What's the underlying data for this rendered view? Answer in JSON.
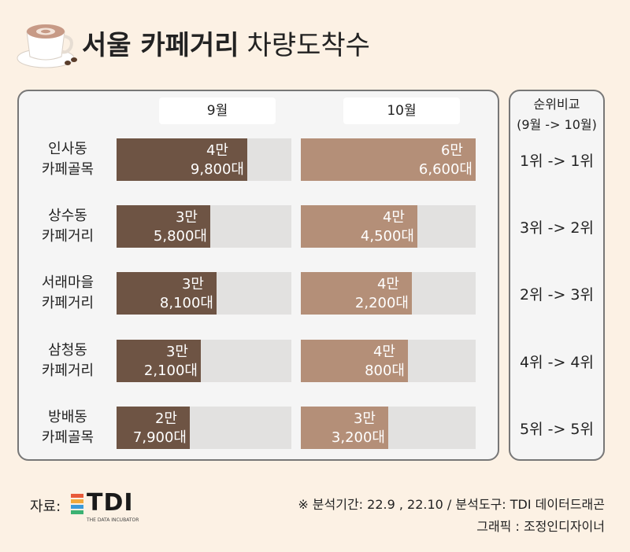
{
  "title_bold": "서울 카페거리",
  "title_light": "차량도착수",
  "columns": {
    "sep": "9월",
    "oct": "10월"
  },
  "rank_header": {
    "line1": "순위비교",
    "line2": "(9월 -> 10월)"
  },
  "chart_data": {
    "type": "bar",
    "title": "서울 카페거리 차량도착수",
    "categories": [
      "인사동 카페골목",
      "상수동 카페거리",
      "서래마을 카페거리",
      "삼청동 카페거리",
      "방배동 카페골목"
    ],
    "series": [
      {
        "name": "9월",
        "values": [
          49800,
          35800,
          38100,
          32100,
          27900
        ]
      },
      {
        "name": "10월",
        "values": [
          66600,
          44500,
          42200,
          40800,
          33200
        ]
      }
    ]
  },
  "rows": [
    {
      "label1": "인사동",
      "label2": "카페골목",
      "sep_l1": "4만",
      "sep_l2": "9,800대",
      "oct_l1": "6만",
      "oct_l2": "6,600대",
      "rank": "1위 -> 1위"
    },
    {
      "label1": "상수동",
      "label2": "카페거리",
      "sep_l1": "3만",
      "sep_l2": "5,800대",
      "oct_l1": "4만",
      "oct_l2": "4,500대",
      "rank": "3위 -> 2위"
    },
    {
      "label1": "서래마을",
      "label2": "카페거리",
      "sep_l1": "3만",
      "sep_l2": "8,100대",
      "oct_l1": "4만",
      "oct_l2": "2,200대",
      "rank": "2위 -> 3위"
    },
    {
      "label1": "삼청동",
      "label2": "카페거리",
      "sep_l1": "3만",
      "sep_l2": "2,100대",
      "oct_l1": "4만",
      "oct_l2": "800대",
      "rank": "4위 -> 4위"
    },
    {
      "label1": "방배동",
      "label2": "카페골목",
      "sep_l1": "2만",
      "sep_l2": "7,900대",
      "oct_l1": "3만",
      "oct_l2": "3,200대",
      "rank": "5위 -> 5위"
    }
  ],
  "source_label": "자료:",
  "logo_text": "TDI",
  "logo_sub": "THE DATA INCUBATOR",
  "note_line1": "※ 분석기간:  22.9 , 22.10 / 분석도구: TDI 데이터드래곤",
  "note_line2": "그래픽 : 조정인디자이너",
  "colors": {
    "sep_bar": "#6e5444",
    "oct_bar": "#b48f78",
    "track": "#e2e1e0"
  }
}
